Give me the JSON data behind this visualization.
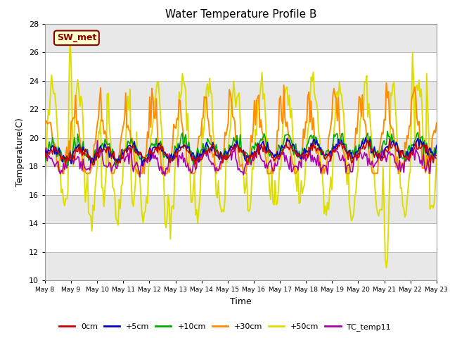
{
  "title": "Water Temperature Profile B",
  "xlabel": "Time",
  "ylabel": "Temperature(C)",
  "ylim": [
    10,
    28
  ],
  "yticks": [
    10,
    12,
    14,
    16,
    18,
    20,
    22,
    24,
    26,
    28
  ],
  "annotation_label": "SW_met",
  "annotation_color": "#8B0000",
  "annotation_bg": "#FFFFCC",
  "series": {
    "0cm": {
      "color": "#CC0000",
      "lw": 1.2
    },
    "+5cm": {
      "color": "#0000CC",
      "lw": 1.2
    },
    "+10cm": {
      "color": "#00AA00",
      "lw": 1.2
    },
    "+30cm": {
      "color": "#FF8C00",
      "lw": 1.4
    },
    "+50cm": {
      "color": "#DDDD00",
      "lw": 1.4
    },
    "TC_temp11": {
      "color": "#AA00AA",
      "lw": 1.2
    }
  },
  "x_labels": [
    "May 8",
    "May 9",
    "May 10",
    "May 11",
    "May 12",
    "May 13",
    "May 14",
    "May 15",
    "May 16",
    "May 17",
    "May 18",
    "May 19",
    "May 20",
    "May 21",
    "May 22",
    "May 23"
  ],
  "band_colors": [
    "#FFFFFF",
    "#E8E8E8"
  ],
  "band_edges": [
    10,
    12,
    14,
    16,
    18,
    20,
    22,
    24,
    26,
    28
  ]
}
